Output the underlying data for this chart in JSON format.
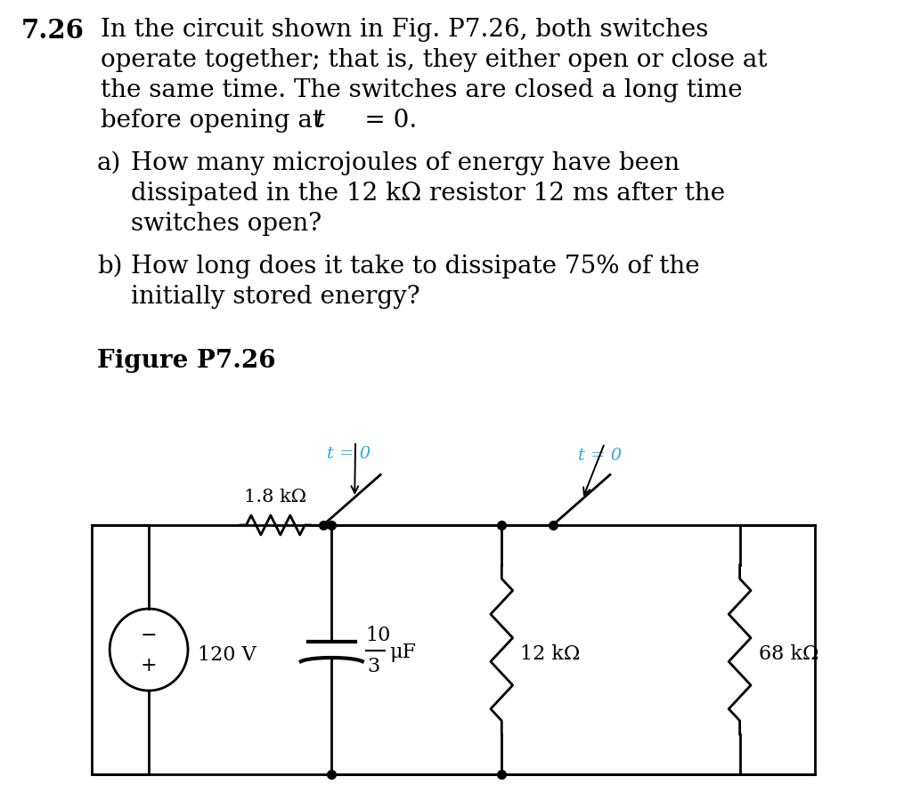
{
  "background_color": "#ffffff",
  "text_color": "#000000",
  "cyan_color": "#29ABE2",
  "problem_number": "7.26",
  "figure_label": "Figure P7.26",
  "switch_label": "t = 0",
  "resistor1_label": "1.8 kΩ",
  "voltage_label": "120 V",
  "capacitor_label_num": "10",
  "capacitor_label_den": "3",
  "capacitor_label_unit": "μF",
  "resistor2_label": "12 kΩ",
  "resistor3_label": "68 kΩ",
  "plus_label": "+",
  "minus_label": "−",
  "lw": 2.0,
  "font_size_main": 20,
  "font_size_circuit": 16
}
